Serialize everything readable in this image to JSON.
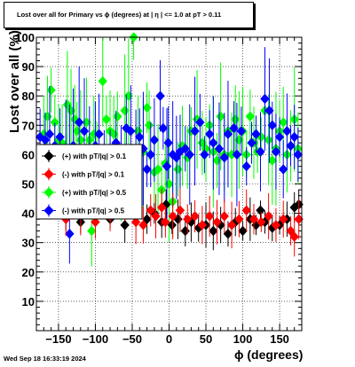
{
  "title": "Lost over all for Primary vs ϕ (degrees) at |  η | <= 1.0 at pT > 0.11",
  "footer": "Wed Sep 18 16:33:19 2024",
  "chart_data": {
    "type": "scatter",
    "title": "Lost over all for Primary vs ϕ (degrees) at |  η | <= 1.0 at pT > 0.11",
    "xlabel": "ϕ (degrees)",
    "ylabel": "Lost over all (%)",
    "xlim": [
      -180,
      180
    ],
    "ylim": [
      0,
      100
    ],
    "x_ticks": [
      -150,
      -100,
      -50,
      0,
      50,
      100,
      150
    ],
    "y_ticks": [
      10,
      20,
      30,
      40,
      50,
      60,
      70,
      80,
      90,
      100
    ],
    "grid": true,
    "legend_position": "middle-left",
    "series": [
      {
        "name": "(+) with pT/|q| > 0.1",
        "color": "#000000",
        "points": [
          [
            -140,
            41
          ],
          [
            -120,
            37
          ],
          [
            -100,
            39
          ],
          [
            -80,
            38
          ],
          [
            -60,
            36
          ],
          [
            -45,
            40
          ],
          [
            -30,
            38
          ],
          [
            -20,
            40
          ],
          [
            -10,
            37
          ],
          [
            -4,
            43
          ],
          [
            4,
            36
          ],
          [
            12,
            38
          ],
          [
            22,
            34
          ],
          [
            30,
            37
          ],
          [
            40,
            35
          ],
          [
            50,
            36
          ],
          [
            60,
            34
          ],
          [
            70,
            36
          ],
          [
            80,
            33
          ],
          [
            90,
            37
          ],
          [
            100,
            34
          ],
          [
            110,
            38
          ],
          [
            118,
            36
          ],
          [
            124,
            41
          ],
          [
            130,
            37
          ],
          [
            140,
            35
          ],
          [
            150,
            36
          ],
          [
            160,
            38
          ],
          [
            170,
            42
          ],
          [
            176,
            43
          ]
        ]
      },
      {
        "name": "(-) with pT/|q| > 0.1",
        "color": "#ff0000",
        "points": [
          [
            -140,
            38
          ],
          [
            -120,
            40
          ],
          [
            -100,
            37
          ],
          [
            -80,
            39
          ],
          [
            -60,
            41
          ],
          [
            -45,
            37
          ],
          [
            -35,
            36
          ],
          [
            -25,
            41
          ],
          [
            -18,
            39
          ],
          [
            -10,
            42
          ],
          [
            -5,
            37
          ],
          [
            5,
            39
          ],
          [
            15,
            41
          ],
          [
            25,
            38
          ],
          [
            35,
            39
          ],
          [
            45,
            36
          ],
          [
            55,
            39
          ],
          [
            65,
            37
          ],
          [
            75,
            39
          ],
          [
            85,
            36
          ],
          [
            95,
            38
          ],
          [
            105,
            41
          ],
          [
            115,
            38
          ],
          [
            125,
            37
          ],
          [
            135,
            39
          ],
          [
            145,
            36
          ],
          [
            155,
            38
          ],
          [
            165,
            34
          ],
          [
            170,
            32
          ],
          [
            176,
            38
          ]
        ]
      },
      {
        "name": "(+) with pT/|q| > 0.5",
        "color": "#00ff00",
        "points": [
          [
            -170,
            67
          ],
          [
            -165,
            73
          ],
          [
            -160,
            82
          ],
          [
            -155,
            71
          ],
          [
            -150,
            65
          ],
          [
            -145,
            64
          ],
          [
            -140,
            60
          ],
          [
            -138,
            77
          ],
          [
            -133,
            75
          ],
          [
            -128,
            72
          ],
          [
            -125,
            68
          ],
          [
            -120,
            65
          ],
          [
            -112,
            71
          ],
          [
            -108,
            65
          ],
          [
            -102,
            67
          ],
          [
            -98,
            62
          ],
          [
            -90,
            85
          ],
          [
            -85,
            72
          ],
          [
            -80,
            68
          ],
          [
            -75,
            67
          ],
          [
            -70,
            73
          ],
          [
            -65,
            44
          ],
          [
            -60,
            75
          ],
          [
            -55,
            80
          ],
          [
            -48,
            100
          ],
          [
            -42,
            68
          ],
          [
            -35,
            61
          ],
          [
            -30,
            76
          ],
          [
            -27,
            70
          ],
          [
            -20,
            54
          ],
          [
            -15,
            55
          ],
          [
            -10,
            48
          ],
          [
            -5,
            57
          ],
          [
            0,
            50
          ],
          [
            5,
            44
          ],
          [
            12,
            55
          ],
          [
            18,
            63
          ],
          [
            25,
            59
          ],
          [
            30,
            68
          ],
          [
            38,
            72
          ],
          [
            45,
            64
          ],
          [
            50,
            62
          ],
          [
            55,
            70
          ],
          [
            60,
            61
          ],
          [
            65,
            58
          ],
          [
            70,
            73
          ],
          [
            75,
            60
          ],
          [
            80,
            68
          ],
          [
            85,
            60
          ],
          [
            90,
            72
          ],
          [
            95,
            65
          ],
          [
            100,
            68
          ],
          [
            105,
            60
          ],
          [
            110,
            73
          ],
          [
            115,
            64
          ],
          [
            120,
            61
          ],
          [
            125,
            66
          ],
          [
            130,
            75
          ],
          [
            135,
            65
          ],
          [
            140,
            58
          ],
          [
            145,
            62
          ],
          [
            150,
            68
          ],
          [
            155,
            71
          ],
          [
            160,
            60
          ],
          [
            165,
            63
          ],
          [
            170,
            72
          ],
          [
            175,
            62
          ],
          [
            -105,
            34
          ]
        ]
      },
      {
        "name": "(-) with pT/|q| > 0.5",
        "color": "#0000ff",
        "points": [
          [
            -175,
            66
          ],
          [
            -168,
            65
          ],
          [
            -162,
            67
          ],
          [
            -155,
            63
          ],
          [
            -148,
            66
          ],
          [
            -140,
            62
          ],
          [
            -135,
            59
          ],
          [
            -130,
            63
          ],
          [
            -122,
            71
          ],
          [
            -115,
            68
          ],
          [
            -108,
            60
          ],
          [
            -100,
            63
          ],
          [
            -95,
            67
          ],
          [
            -88,
            62
          ],
          [
            -80,
            58
          ],
          [
            -72,
            64
          ],
          [
            -65,
            61
          ],
          [
            -58,
            69
          ],
          [
            -52,
            68
          ],
          [
            -45,
            59
          ],
          [
            -40,
            66
          ],
          [
            -35,
            62
          ],
          [
            -30,
            55
          ],
          [
            -25,
            60
          ],
          [
            -20,
            65
          ],
          [
            -12,
            80
          ],
          [
            -8,
            69
          ],
          [
            -3,
            56
          ],
          [
            -1,
            64
          ],
          [
            5,
            60
          ],
          [
            10,
            59
          ],
          [
            15,
            61
          ],
          [
            22,
            62
          ],
          [
            28,
            60
          ],
          [
            35,
            68
          ],
          [
            42,
            71
          ],
          [
            48,
            60
          ],
          [
            55,
            67
          ],
          [
            60,
            64
          ],
          [
            68,
            62
          ],
          [
            75,
            59
          ],
          [
            80,
            67
          ],
          [
            88,
            69
          ],
          [
            92,
            60
          ],
          [
            98,
            68
          ],
          [
            105,
            56
          ],
          [
            112,
            64
          ],
          [
            118,
            67
          ],
          [
            124,
            61
          ],
          [
            130,
            79
          ],
          [
            136,
            75
          ],
          [
            140,
            70
          ],
          [
            145,
            61
          ],
          [
            150,
            66
          ],
          [
            155,
            55
          ],
          [
            160,
            68
          ],
          [
            165,
            63
          ],
          [
            170,
            66
          ],
          [
            175,
            60
          ],
          [
            -135,
            33
          ]
        ]
      }
    ]
  }
}
